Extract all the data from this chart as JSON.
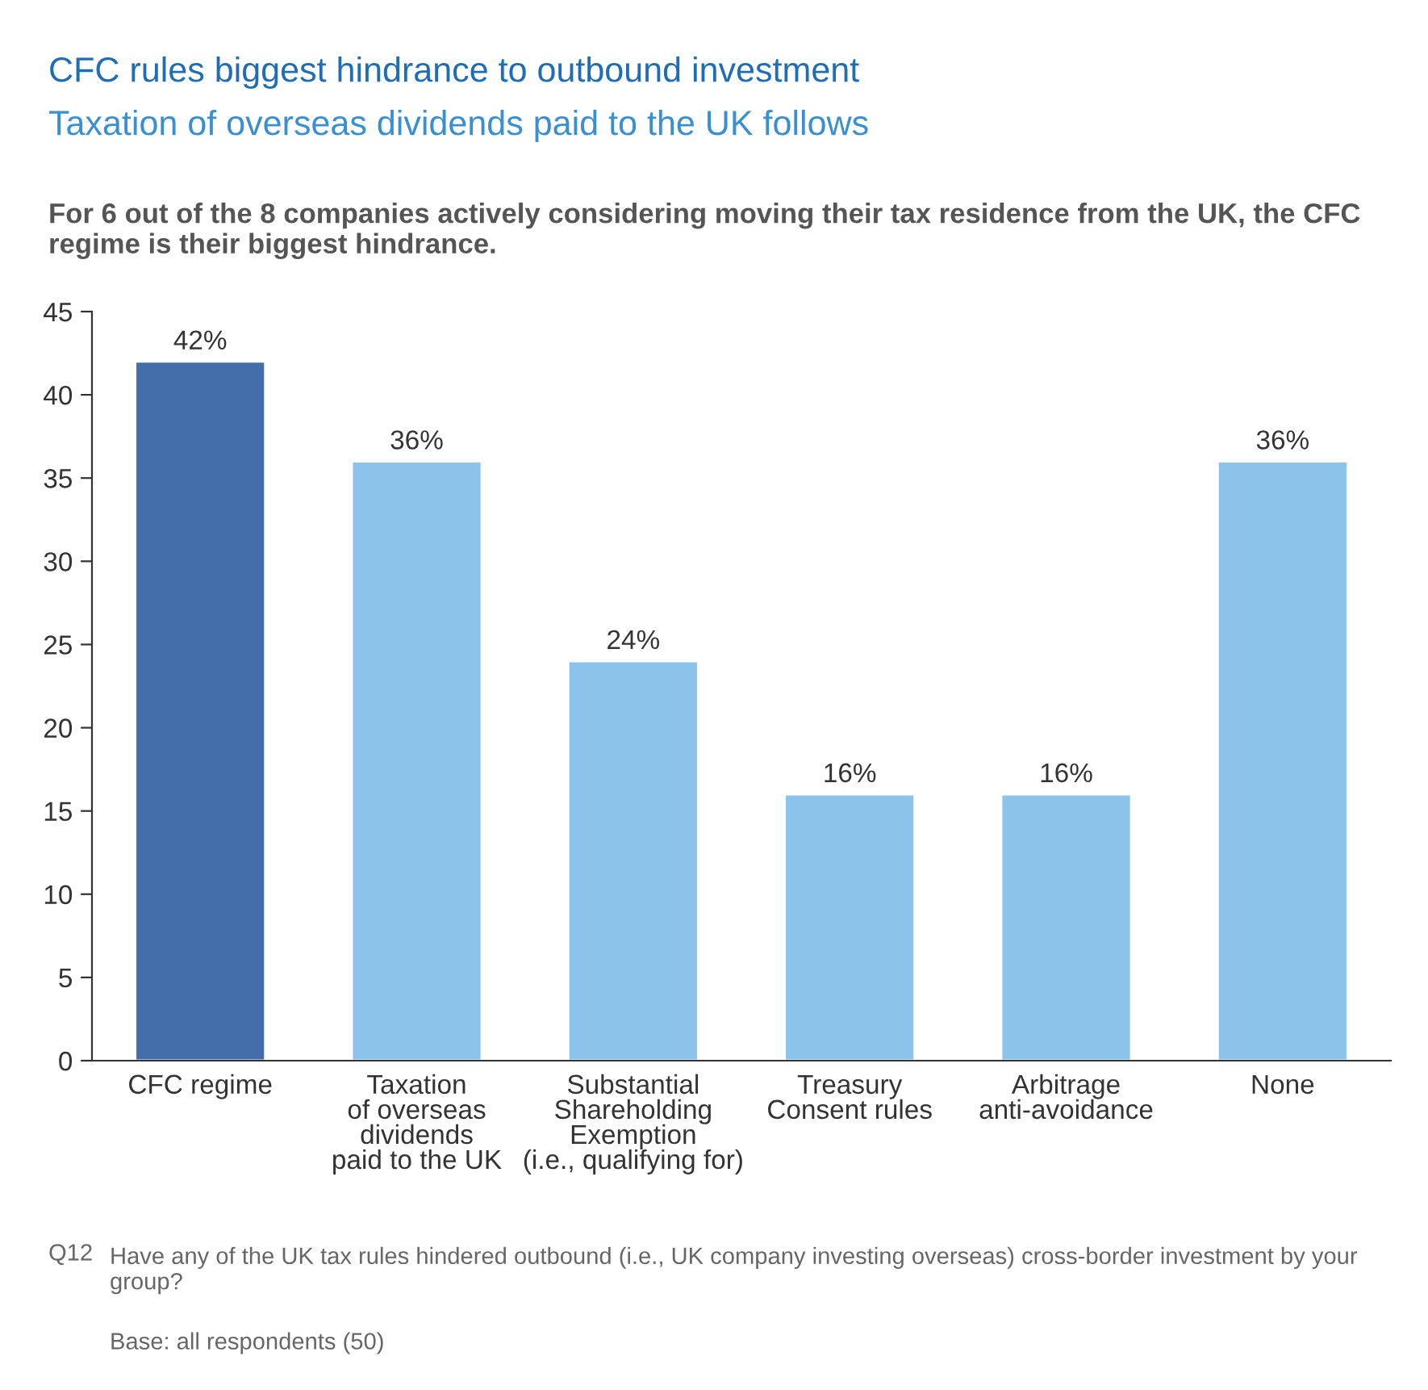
{
  "chart_data": {
    "type": "bar",
    "title": "CFC rules biggest hindrance to outbound investment",
    "subtitle": "Taxation of overseas dividends paid to the UK follows",
    "annotations": [
      "For 6 out of the 8 companies actively considering moving their tax residence from the UK, the CFC regime is their biggest hindrance.",
      "Q12",
      "Have any of the UK tax rules hindered outbound (i.e., UK company investing overseas) cross-border investment by your group?",
      "Base: all respondents (50)"
    ],
    "categories": [
      "CFC regime",
      "Taxation\nof overseas\ndividends\npaid to the UK",
      "Substantial\nShareholding\nExemption\n(i.e., qualifying for)",
      "Treasury\nConsent rules",
      "Arbitrage\nanti-avoidance",
      "None"
    ],
    "values": [
      42,
      36,
      24,
      16,
      16,
      36
    ],
    "colors": [
      "#436ea9",
      "#8cc3ea",
      "#8cc3ea",
      "#8cc3ea",
      "#8cc3ea",
      "#8cc3ea"
    ],
    "value_labels": [
      "42%",
      "36%",
      "24%",
      "16%",
      "16%",
      "36%"
    ],
    "ylim": [
      0,
      45
    ],
    "yticks": [
      0,
      5,
      10,
      15,
      20,
      25,
      30,
      35,
      40,
      45
    ],
    "grid": false,
    "legend": false
  }
}
